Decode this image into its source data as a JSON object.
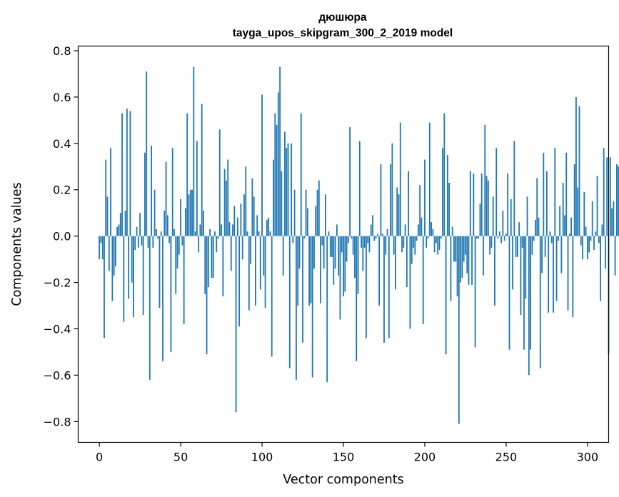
{
  "chart_data": {
    "type": "bar",
    "title": "дюшюра",
    "subtitle": "tayga_upos_skipgram_300_2_2019 model",
    "xlabel": "Vector components",
    "ylabel": "Components values",
    "xlim": [
      -13,
      313
    ],
    "ylim": [
      -0.89,
      0.82
    ],
    "xticks": [
      0,
      50,
      100,
      150,
      200,
      250,
      300
    ],
    "xtick_labels": [
      "0",
      "50",
      "100",
      "150",
      "200",
      "250",
      "300"
    ],
    "yticks": [
      -0.8,
      -0.6,
      -0.4,
      -0.2,
      0.0,
      0.2,
      0.4,
      0.6,
      0.8
    ],
    "ytick_labels": [
      "−0.8",
      "−0.6",
      "−0.4",
      "−0.2",
      "0.0",
      "0.2",
      "0.4",
      "0.6",
      "0.8"
    ],
    "grid": false,
    "bar_color": "#1f77b4",
    "values": [
      -0.1,
      -0.03,
      -0.1,
      -0.44,
      0.33,
      0.17,
      -0.15,
      0.38,
      -0.28,
      -0.17,
      -0.13,
      0.04,
      0.05,
      0.1,
      0.53,
      -0.37,
      0.11,
      0.55,
      -0.27,
      0.54,
      -0.2,
      -0.35,
      -0.06,
      0.04,
      -0.05,
      0.1,
      -0.04,
      -0.34,
      0.36,
      0.71,
      -0.05,
      -0.62,
      0.39,
      -0.05,
      0.2,
      0.03,
      -0.01,
      -0.31,
      0.02,
      -0.54,
      0.11,
      0.32,
      0.09,
      -0.03,
      -0.5,
      0.38,
      0.03,
      -0.25,
      -0.14,
      -0.08,
      0.16,
      -0.04,
      -0.38,
      0.12,
      0.53,
      0.18,
      0.2,
      0.2,
      0.73,
      0.02,
      0.41,
      -0.07,
      0.05,
      0.57,
      0.11,
      -0.25,
      -0.51,
      -0.22,
      0.03,
      -0.18,
      -0.18,
      0.02,
      -0.07,
      -0.01,
      0.46,
      0.05,
      -0.26,
      0.29,
      0.24,
      0.33,
      0.06,
      -0.15,
      0.05,
      0.13,
      -0.76,
      0.08,
      -0.39,
      0.14,
      -0.1,
      0.18,
      0.3,
      0.02,
      -0.32,
      -0.12,
      0.25,
      0.17,
      -0.3,
      0.09,
      0.02,
      -0.23,
      0.61,
      -0.17,
      -0.31,
      0.07,
      0.08,
      0.02,
      -0.52,
      0.33,
      0.53,
      0.48,
      0.62,
      0.73,
      0.28,
      -0.17,
      0.45,
      0.38,
      0.4,
      -0.57,
      0.4,
      -0.03,
      0.2,
      -0.62,
      -0.3,
      -0.14,
      0.53,
      -0.46,
      -0.01,
      0.2,
      0.12,
      -0.3,
      -0.29,
      -0.61,
      -0.14,
      0.13,
      0.2,
      0.24,
      -0.29,
      -0.04,
      -0.14,
      0.18,
      -0.63,
      0.02,
      -0.09,
      -0.09,
      -0.21,
      -0.14,
      0.05,
      -0.17,
      -0.36,
      -0.07,
      -0.26,
      -0.24,
      -0.11,
      -0.03,
      0.47,
      -0.01,
      -0.08,
      -0.18,
      -0.54,
      -0.25,
      0.41,
      -0.05,
      -0.15,
      -0.05,
      -0.44,
      -0.03,
      -0.07,
      0.05,
      0.09,
      -0.02,
      -0.01,
      0.01,
      -0.3,
      0.31,
      0.01,
      -0.46,
      -0.08,
      0.03,
      -0.44,
      0.31,
      0.4,
      -0.08,
      -0.23,
      0.21,
      0.18,
      0.49,
      -0.07,
      -0.05,
      0.05,
      -0.22,
      0.28,
      -0.4,
      -0.12,
      -0.05,
      -0.08,
      -0.02,
      0.05,
      0.22,
      0.08,
      -0.38,
      0.33,
      -0.05,
      -0.01,
      0.49,
      0.06,
      0.03,
      -0.07,
      -0.03,
      -0.08,
      -0.06,
      -0.01,
      0.38,
      0.53,
      -0.51,
      0.35,
      0.23,
      -0.28,
      0.04,
      -0.11,
      -0.11,
      -0.26,
      -0.81,
      -0.2,
      -0.18,
      -0.11,
      -0.08,
      -0.16,
      -0.21,
      0.28,
      -0.21,
      0.27,
      -0.48,
      -0.01,
      -0.01,
      0.14,
      0.27,
      -0.17,
      0.48,
      0.26,
      0.24,
      -0.08,
      -0.05,
      0.17,
      -0.3,
      0.38,
      -0.01,
      0.02,
      -0.03,
      0.11,
      -0.02,
      0.01,
      0.27,
      -0.49,
      0.16,
      -0.23,
      0.41,
      -0.09,
      -0.09,
      0.06,
      -0.34,
      -0.05,
      -0.49,
      -0.27,
      0.17,
      -0.6,
      -0.49,
      -0.08,
      -0.02,
      0.07,
      0.25,
      0.08,
      -0.57,
      -0.16,
      0.36,
      -0.09,
      0.28,
      -0.33,
      0.02,
      -0.03,
      -0.33,
      0.38,
      -0.28,
      -0.02,
      0.13,
      -0.16,
      0.23,
      0.09,
      0.36,
      -0.32,
      0.01,
      0.08,
      -0.35,
      0.31,
      0.6,
      0.21,
      0.56,
      -0.04,
      -0.1,
      0.19,
      0.04,
      -0.1,
      -0.07,
      -0.02,
      0.15,
      -0.06,
      0.02,
      0.26,
      -0.03,
      -0.28,
      0.05,
      0.38,
      -0.14,
      0.34,
      -0.51,
      0.34,
      0.12,
      0.15,
      -0.17,
      0.31,
      0.3
    ]
  }
}
